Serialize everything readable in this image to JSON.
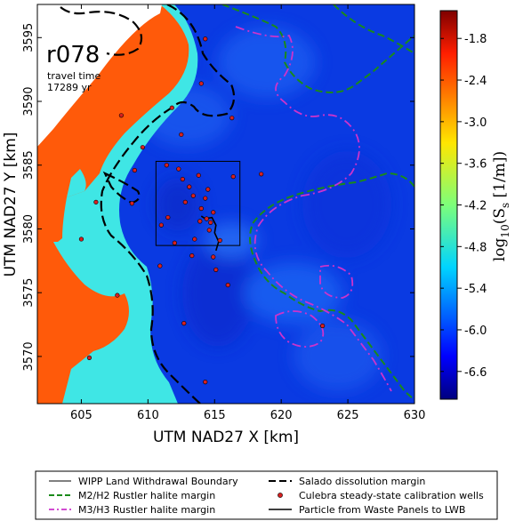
{
  "chart_data": {
    "type": "heatmap",
    "run_label": "r078",
    "annotation_line1": "travel time",
    "annotation_line2": "17289 yr",
    "xlabel": "UTM NAD27 X [km]",
    "ylabel": "UTM NAD27 Y [km]",
    "xlim": [
      601.7,
      630
    ],
    "ylim": [
      3566.3,
      3597.6
    ],
    "xticks": [
      605,
      610,
      615,
      620,
      625,
      630
    ],
    "yticks": [
      3570,
      3575,
      3580,
      3585,
      3590,
      3595
    ],
    "colorbar": {
      "label_text": "log",
      "label_sub": "10",
      "label_rest": "(S",
      "label_rest_sub": "s",
      "label_end": "  [1/m])",
      "range": [
        -7.0,
        -1.4
      ],
      "ticks": [
        "-1.8",
        "-2.4",
        "-3.0",
        "-3.6",
        "-4.2",
        "-4.8",
        "-5.4",
        "-6.0",
        "-6.6"
      ],
      "tick_values": [
        -1.8,
        -2.4,
        -3.0,
        -3.6,
        -4.2,
        -4.8,
        -5.4,
        -6.0,
        -6.6
      ]
    },
    "wipp_boundary": {
      "x": [
        610.6,
        616.9
      ],
      "y": [
        3578.7,
        3585.3
      ]
    },
    "wells": [
      [
        608.0,
        3588.9
      ],
      [
        609.6,
        3586.4
      ],
      [
        612.5,
        3587.4
      ],
      [
        611.8,
        3589.5
      ],
      [
        614.0,
        3591.4
      ],
      [
        614.3,
        3594.9
      ],
      [
        616.3,
        3588.7
      ],
      [
        606.1,
        3582.1
      ],
      [
        608.8,
        3582.0
      ],
      [
        609.0,
        3584.6
      ],
      [
        611.4,
        3585.0
      ],
      [
        612.3,
        3584.7
      ],
      [
        613.8,
        3584.2
      ],
      [
        612.6,
        3583.9
      ],
      [
        613.1,
        3583.3
      ],
      [
        614.5,
        3583.1
      ],
      [
        613.4,
        3582.6
      ],
      [
        612.8,
        3582.1
      ],
      [
        614.3,
        3582.4
      ],
      [
        614.0,
        3581.6
      ],
      [
        614.9,
        3581.3
      ],
      [
        613.9,
        3580.6
      ],
      [
        614.7,
        3580.5
      ],
      [
        613.5,
        3579.2
      ],
      [
        615.4,
        3579.1
      ],
      [
        613.3,
        3577.9
      ],
      [
        614.9,
        3577.8
      ],
      [
        611.5,
        3580.9
      ],
      [
        611.0,
        3580.3
      ],
      [
        612.0,
        3578.9
      ],
      [
        610.9,
        3577.1
      ],
      [
        616.4,
        3584.1
      ],
      [
        618.5,
        3584.3
      ],
      [
        615.1,
        3576.8
      ],
      [
        616.0,
        3575.6
      ],
      [
        612.7,
        3572.6
      ],
      [
        605.0,
        3579.2
      ],
      [
        607.7,
        3574.8
      ],
      [
        605.6,
        3569.9
      ],
      [
        614.3,
        3568.0
      ],
      [
        623.1,
        3572.4
      ],
      [
        614.4,
        3580.8
      ],
      [
        614.6,
        3579.9
      ]
    ],
    "legend": [
      "WIPP Land Withdrawal Boundary",
      "Salado dissolution margin",
      "M2/H2 Rustler halite margin",
      "Culebra steady-state calibration wells",
      "M3/H3 Rustler halite margin",
      "Particle from Waste Panels to LWB"
    ],
    "colors": {
      "high": "#ff5a0a",
      "mid": "#3ee7e6",
      "low": "#0a35e0",
      "m2h2": "#1a8a1a",
      "m3h3": "#cc33cc",
      "well": "#d62020"
    }
  }
}
